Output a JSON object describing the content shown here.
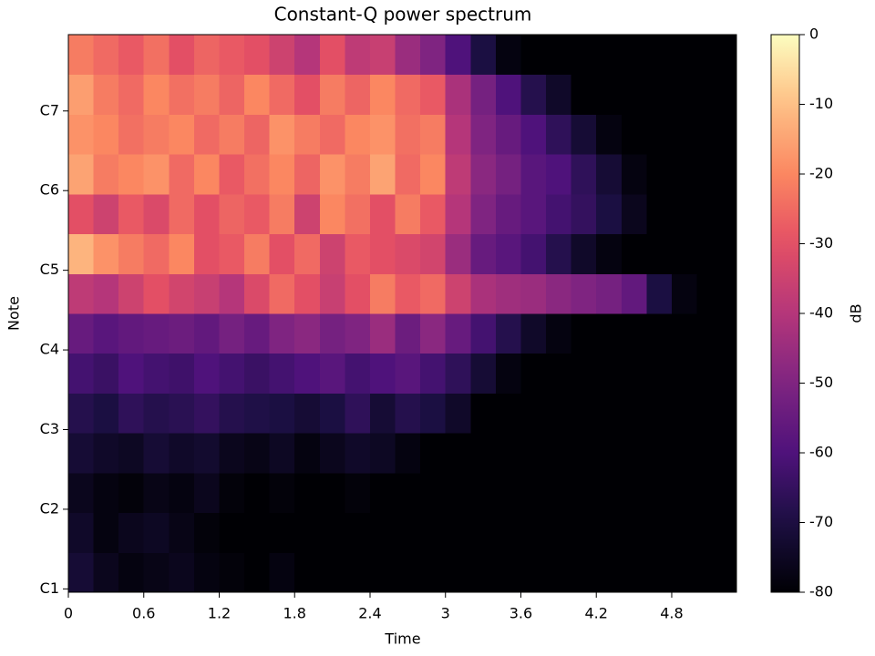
{
  "chart_data": {
    "type": "heatmap",
    "title": "Constant-Q power spectrum",
    "x_label": "Time",
    "y_label": "Note",
    "colorbar_label": "dB",
    "colormap": "magma",
    "xlim": [
      0,
      5.315
    ],
    "xticks": [
      0,
      0.6,
      1.2,
      1.8,
      2.4,
      3,
      3.6,
      4.2,
      4.8
    ],
    "ylim": [
      23.5,
      107.5
    ],
    "yticks": [
      {
        "value": 24,
        "label": "C1"
      },
      {
        "value": 36,
        "label": "C2"
      },
      {
        "value": 48,
        "label": "C3"
      },
      {
        "value": 60,
        "label": "C4"
      },
      {
        "value": 72,
        "label": "C5"
      },
      {
        "value": 84,
        "label": "C6"
      },
      {
        "value": 96,
        "label": "C7"
      }
    ],
    "zlim": [
      -80,
      0
    ],
    "zticks": [
      0,
      -10,
      -20,
      -30,
      -40,
      -50,
      -60,
      -70,
      -80
    ],
    "x_edges": [
      0,
      0.2,
      0.4,
      0.6,
      0.8,
      1,
      1.2,
      1.4,
      1.6,
      1.8,
      2,
      2.2,
      2.4,
      2.6,
      2.8,
      3,
      3.2,
      3.4,
      3.6,
      3.8,
      4,
      4.2,
      4.4,
      4.6,
      4.8,
      5,
      5.2,
      5.315
    ],
    "y_edges": [
      23.5,
      29.5,
      35.5,
      41.5,
      47.5,
      53.5,
      59.5,
      65.5,
      71.5,
      77.5,
      83.5,
      89.5,
      95.5,
      101.5,
      107.5
    ],
    "z": [
      [
        -72,
        -76,
        -78,
        -77,
        -76,
        -78,
        -79,
        -80,
        -78,
        -80,
        -80,
        -80,
        -80,
        -80,
        -80,
        -80,
        -80,
        -80,
        -80,
        -80,
        -80,
        -80,
        -80,
        -80,
        -80,
        -80,
        -80
      ],
      [
        -74,
        -78,
        -76,
        -75,
        -77,
        -79,
        -80,
        -80,
        -80,
        -80,
        -80,
        -80,
        -80,
        -80,
        -80,
        -80,
        -80,
        -80,
        -80,
        -80,
        -80,
        -80,
        -80,
        -80,
        -80,
        -80,
        -80
      ],
      [
        -76,
        -78,
        -79,
        -77,
        -78,
        -76,
        -79,
        -80,
        -79,
        -80,
        -80,
        -79,
        -80,
        -80,
        -80,
        -80,
        -80,
        -80,
        -80,
        -80,
        -80,
        -80,
        -80,
        -80,
        -80,
        -80,
        -80
      ],
      [
        -72,
        -74,
        -75,
        -72,
        -74,
        -73,
        -76,
        -77,
        -75,
        -78,
        -76,
        -74,
        -75,
        -78,
        -80,
        -80,
        -80,
        -80,
        -80,
        -80,
        -80,
        -80,
        -80,
        -80,
        -80,
        -80,
        -80
      ],
      [
        -68,
        -70,
        -66,
        -68,
        -67,
        -65,
        -68,
        -69,
        -70,
        -72,
        -70,
        -66,
        -72,
        -68,
        -70,
        -74,
        -80,
        -80,
        -80,
        -80,
        -80,
        -80,
        -80,
        -80,
        -80,
        -80,
        -80
      ],
      [
        -62,
        -64,
        -60,
        -62,
        -63,
        -60,
        -62,
        -64,
        -62,
        -60,
        -58,
        -62,
        -60,
        -58,
        -62,
        -66,
        -72,
        -78,
        -80,
        -80,
        -80,
        -80,
        -80,
        -80,
        -80,
        -80,
        -80
      ],
      [
        -55,
        -58,
        -56,
        -55,
        -54,
        -56,
        -52,
        -55,
        -50,
        -48,
        -52,
        -50,
        -45,
        -54,
        -48,
        -55,
        -62,
        -68,
        -74,
        -78,
        -80,
        -80,
        -80,
        -80,
        -80,
        -80,
        -80
      ],
      [
        -38,
        -40,
        -35,
        -30,
        -34,
        -36,
        -40,
        -32,
        -25,
        -30,
        -36,
        -30,
        -22,
        -28,
        -25,
        -35,
        -42,
        -44,
        -45,
        -48,
        -50,
        -52,
        -56,
        -70,
        -78,
        -80,
        -80
      ],
      [
        -12,
        -18,
        -22,
        -25,
        -20,
        -30,
        -28,
        -22,
        -30,
        -25,
        -35,
        -28,
        -30,
        -32,
        -34,
        -45,
        -55,
        -58,
        -62,
        -68,
        -74,
        -78,
        -80,
        -80,
        -80,
        -80,
        -80
      ],
      [
        -30,
        -35,
        -28,
        -32,
        -25,
        -30,
        -26,
        -28,
        -22,
        -35,
        -20,
        -24,
        -30,
        -22,
        -28,
        -40,
        -50,
        -55,
        -58,
        -62,
        -65,
        -70,
        -76,
        -80,
        -80,
        -80,
        -80
      ],
      [
        -15,
        -22,
        -20,
        -18,
        -25,
        -20,
        -28,
        -24,
        -20,
        -26,
        -18,
        -22,
        -15,
        -25,
        -20,
        -38,
        -48,
        -52,
        -58,
        -60,
        -66,
        -72,
        -78,
        -80,
        -80,
        -80,
        -80
      ],
      [
        -18,
        -20,
        -24,
        -22,
        -20,
        -25,
        -22,
        -26,
        -18,
        -22,
        -25,
        -20,
        -18,
        -24,
        -22,
        -40,
        -50,
        -55,
        -60,
        -66,
        -72,
        -78,
        -80,
        -80,
        -80,
        -80,
        -80
      ],
      [
        -16,
        -22,
        -25,
        -20,
        -24,
        -22,
        -26,
        -20,
        -25,
        -30,
        -22,
        -26,
        -20,
        -25,
        -28,
        -42,
        -52,
        -60,
        -68,
        -74,
        -80,
        -80,
        -80,
        -80,
        -80,
        -80,
        -80
      ],
      [
        -22,
        -25,
        -28,
        -24,
        -30,
        -26,
        -28,
        -30,
        -35,
        -40,
        -30,
        -38,
        -36,
        -45,
        -50,
        -60,
        -70,
        -78,
        -80,
        -80,
        -80,
        -80,
        -80,
        -80,
        -80,
        -80,
        -80
      ]
    ]
  }
}
